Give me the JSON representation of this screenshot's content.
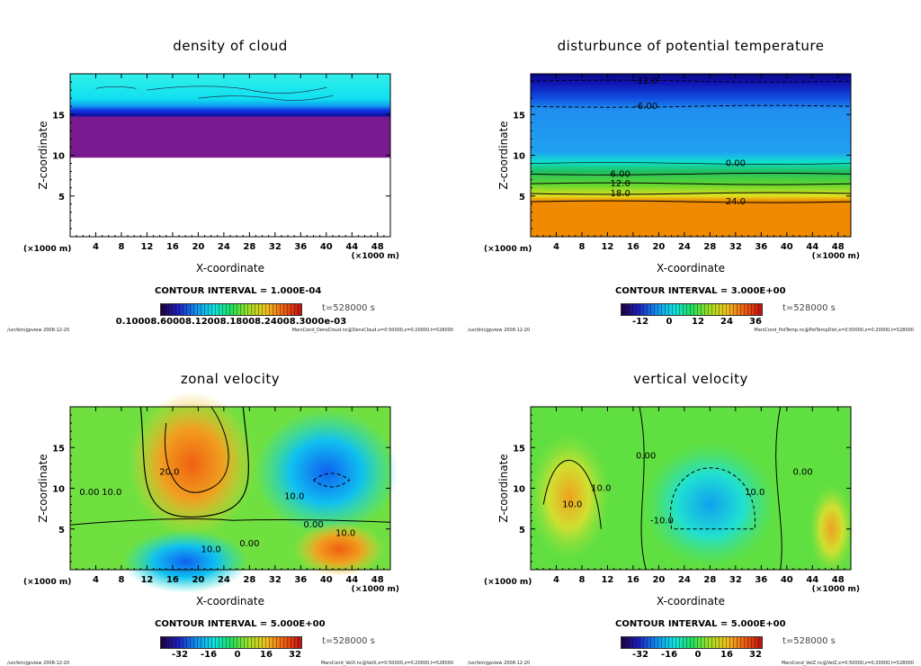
{
  "common": {
    "xlabel": "X-coordinate",
    "ylabel": "Z-coordinate",
    "x_unit": "(×1000 m)",
    "y_unit": "(×1000 m)",
    "x_ticks": [
      "4",
      "8",
      "12",
      "16",
      "20",
      "24",
      "28",
      "32",
      "36",
      "40",
      "44",
      "48"
    ],
    "y_ticks": [
      "5",
      "10",
      "15"
    ],
    "time": "t=528000 s",
    "footer_left": "/usr/bin/gpview   2008-12-20"
  },
  "chart_data": [
    {
      "type": "heatmap",
      "title": "density of cloud",
      "xlabel": "X-coordinate",
      "ylabel": "Z-coordinate",
      "xlim": [
        0,
        50
      ],
      "ylim": [
        0,
        20
      ],
      "contour_interval": "CONTOUR INTERVAL = 1.000E-04",
      "colorbar_labels": [
        "0.10008.60008.12008.18008.24008.3000e-03"
      ],
      "contour_labels": [],
      "footer_right": "MarsCond_DensCloud.nc@DensCloud,x=0:50000,z=0:20000,t=528000"
    },
    {
      "type": "heatmap",
      "title": "disturbunce of potential temperature",
      "xlabel": "X-coordinate",
      "ylabel": "Z-coordinate",
      "xlim": [
        0,
        50
      ],
      "ylim": [
        0,
        20
      ],
      "contour_interval": "CONTOUR INTERVAL = 3.000E+00",
      "colorbar_labels": [
        "-12",
        "0",
        "12",
        "24",
        "36"
      ],
      "contour_labels": [
        {
          "text": "-12.0",
          "x": 18,
          "z": 19.1
        },
        {
          "text": "-6.00",
          "x": 18,
          "z": 16
        },
        {
          "text": "0.00",
          "x": 32,
          "z": 9
        },
        {
          "text": "6.00",
          "x": 14,
          "z": 7.7
        },
        {
          "text": "12.0",
          "x": 14,
          "z": 6.5
        },
        {
          "text": "18.0",
          "x": 14,
          "z": 5.3
        },
        {
          "text": "24.0",
          "x": 32,
          "z": 4.3
        }
      ],
      "footer_right": "MarsCond_PotTemp.nc@PotTempDist,x=0:50000,z=0:20000,t=528000"
    },
    {
      "type": "heatmap",
      "title": "zonal velocity",
      "xlabel": "X-coordinate",
      "ylabel": "Z-coordinate",
      "xlim": [
        0,
        50
      ],
      "ylim": [
        0,
        20
      ],
      "contour_interval": "CONTOUR INTERVAL = 5.000E+00",
      "colorbar_labels": [
        "-32",
        "-16",
        "0",
        "16",
        "32"
      ],
      "contour_labels": [
        {
          "text": "20.0",
          "x": 15.5,
          "z": 12
        },
        {
          "text": "10.0",
          "x": 6.5,
          "z": 9.5
        },
        {
          "text": "0.00",
          "x": 3,
          "z": 9.5
        },
        {
          "text": "10.0",
          "x": 35,
          "z": 9
        },
        {
          "text": "0.00",
          "x": 38,
          "z": 5.5
        },
        {
          "text": "10.0",
          "x": 43,
          "z": 4.5
        },
        {
          "text": "10.0",
          "x": 22,
          "z": 2.5
        },
        {
          "text": "0.00",
          "x": 28,
          "z": 3.2
        }
      ],
      "footer_right": "MarsCond_VelX.nc@VelX,x=0:50000,z=0:20000,t=528000"
    },
    {
      "type": "heatmap",
      "title": "vertical velocity",
      "xlabel": "X-coordinate",
      "ylabel": "Z-coordinate",
      "xlim": [
        0,
        50
      ],
      "ylim": [
        0,
        20
      ],
      "contour_interval": "CONTOUR INTERVAL = 5.000E+00",
      "colorbar_labels": [
        "-32",
        "-16",
        "0",
        "16",
        "32"
      ],
      "contour_labels": [
        {
          "text": "10.0",
          "x": 6.5,
          "z": 8
        },
        {
          "text": "10.0",
          "x": 11,
          "z": 10
        },
        {
          "text": "0.00",
          "x": 18,
          "z": 14
        },
        {
          "text": "-10.0",
          "x": 20.5,
          "z": 6
        },
        {
          "text": "10.0",
          "x": 35,
          "z": 9.5
        },
        {
          "text": "0.00",
          "x": 42.5,
          "z": 12
        }
      ],
      "footer_right": "MarsCond_VelZ.nc@VelZ,x=0:50000,z=0:20000,t=528000"
    }
  ]
}
